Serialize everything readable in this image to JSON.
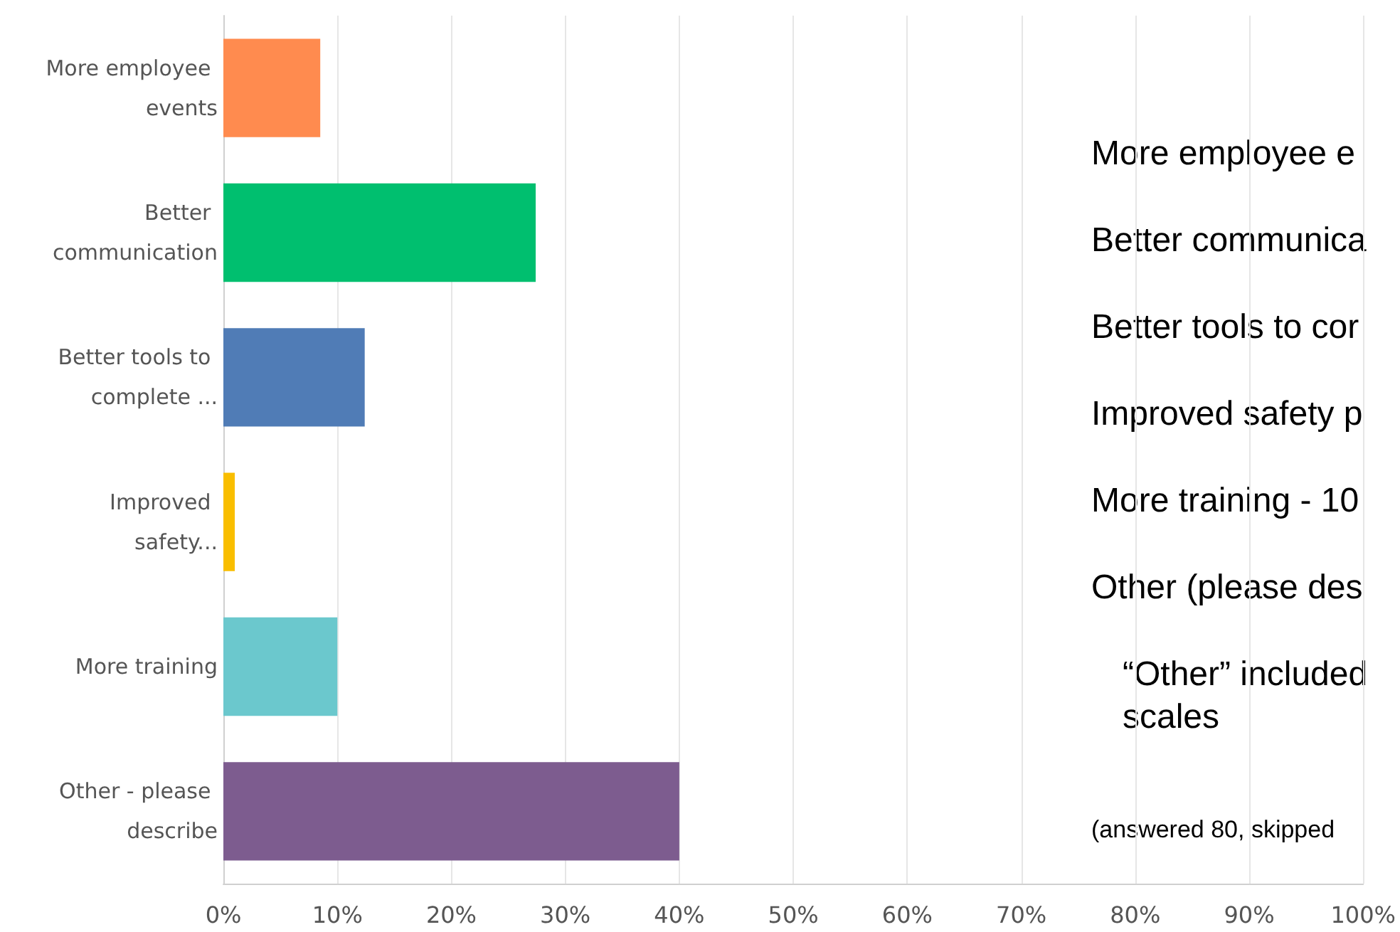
{
  "chart_data": {
    "type": "bar",
    "orientation": "horizontal",
    "categories": [
      "More employee events",
      "Better communication",
      "Better tools to complete ...",
      "Improved safety...",
      "More training",
      "Other - please describe"
    ],
    "values": [
      8.5,
      27.4,
      12.4,
      1,
      10,
      40
    ],
    "colors": [
      "#ff8b4f",
      "#00bf6f",
      "#507cb6",
      "#f9be00",
      "#6bc8cd",
      "#7d5c8f"
    ],
    "xlim": [
      0,
      100
    ],
    "xticks": [
      {
        "value": 0,
        "label": "0%"
      },
      {
        "value": 10,
        "label": "10%"
      },
      {
        "value": 20,
        "label": "20%"
      },
      {
        "value": 30,
        "label": "30%"
      },
      {
        "value": 40,
        "label": "40%"
      },
      {
        "value": 50,
        "label": "50%"
      },
      {
        "value": 60,
        "label": "60%"
      },
      {
        "value": 70,
        "label": "70%"
      },
      {
        "value": 80,
        "label": "80%"
      },
      {
        "value": 90,
        "label": "90%"
      },
      {
        "value": 100,
        "label": "100%"
      }
    ],
    "grid": "x",
    "annotations": [
      "More employee e",
      "Better communica",
      "Better tools to cor",
      "Improved safety p",
      "More training - 10",
      "Other (please des",
      "“Other” included\nscales",
      "(answered 80, skipped"
    ]
  }
}
